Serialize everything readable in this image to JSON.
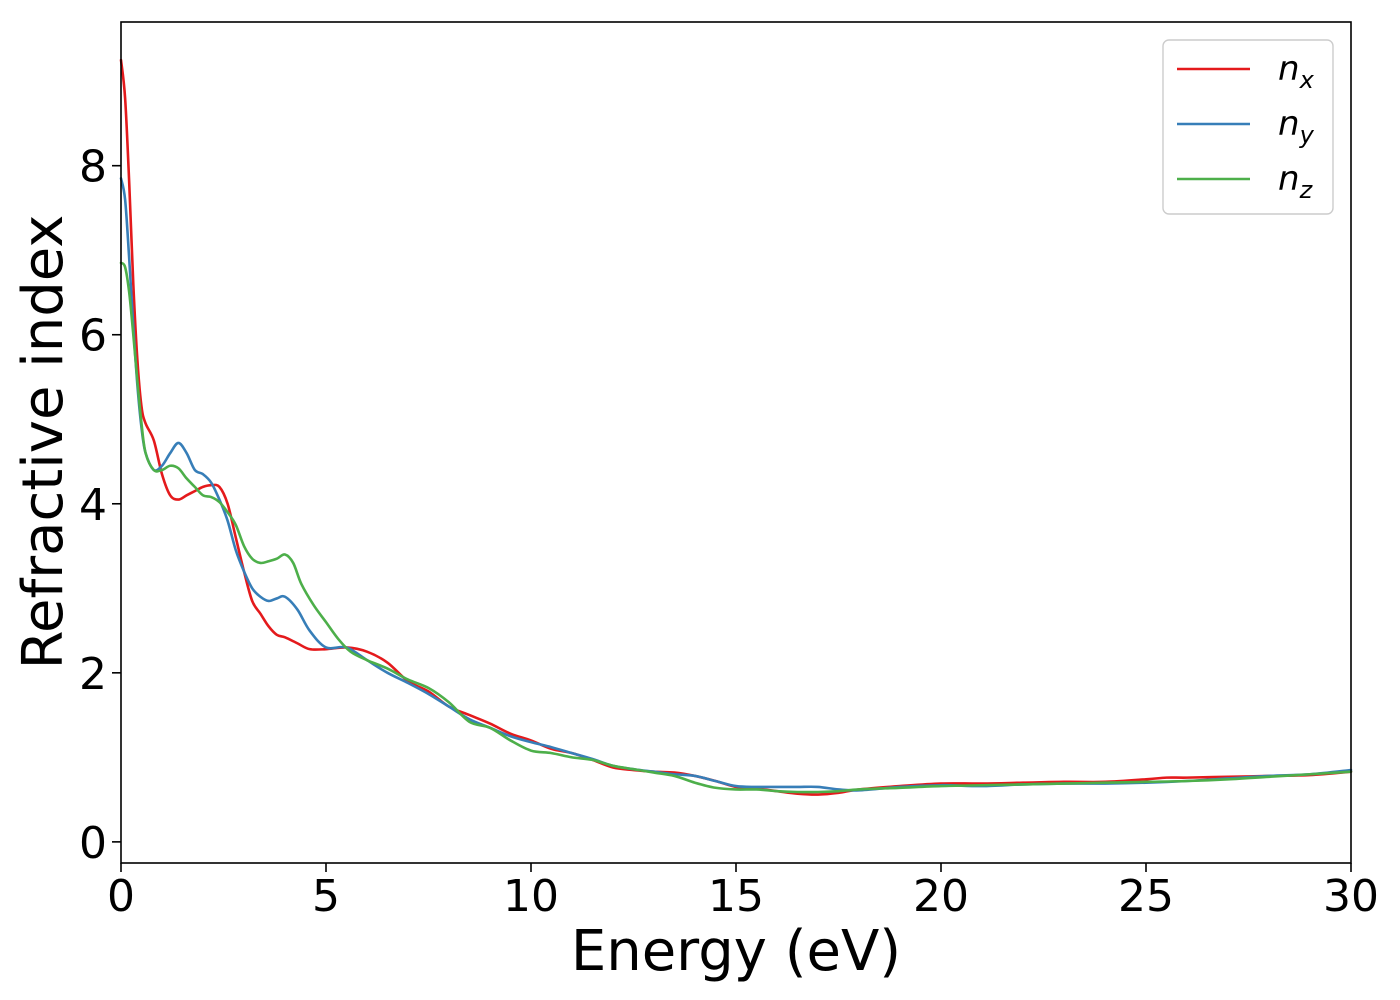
{
  "chart_data": {
    "type": "line",
    "xlabel": "Energy (eV)",
    "ylabel": "Refractive index",
    "xlim": [
      0,
      30
    ],
    "ylim": [
      -0.25,
      9.7
    ],
    "xticks": [
      0,
      5,
      10,
      15,
      20,
      25,
      30
    ],
    "yticks": [
      0,
      2,
      4,
      6,
      8
    ],
    "grid": false,
    "legend": "top-right",
    "series": [
      {
        "name": "n",
        "subscript": "x",
        "color": "#e41a1c",
        "x": [
          0,
          0.1,
          0.2,
          0.3,
          0.4,
          0.5,
          0.6,
          0.8,
          1.0,
          1.2,
          1.4,
          1.6,
          1.8,
          2.0,
          2.2,
          2.4,
          2.6,
          2.8,
          3.0,
          3.2,
          3.4,
          3.6,
          3.8,
          4.0,
          4.3,
          4.6,
          5.0,
          5.5,
          6.0,
          6.5,
          7.0,
          7.5,
          8.0,
          8.5,
          9.0,
          9.5,
          10.0,
          10.5,
          11.0,
          11.5,
          12.0,
          12.5,
          13.0,
          13.5,
          14.0,
          14.5,
          15.0,
          15.5,
          16.0,
          16.5,
          17.0,
          17.5,
          18.0,
          19.0,
          20.0,
          21.0,
          22.0,
          23.0,
          24.0,
          25.0,
          25.5,
          26.0,
          27.0,
          28.0,
          29.0,
          30.0
        ],
        "y": [
          9.25,
          8.8,
          7.8,
          6.6,
          5.7,
          5.15,
          4.95,
          4.75,
          4.35,
          4.1,
          4.05,
          4.1,
          4.15,
          4.2,
          4.22,
          4.2,
          4.0,
          3.6,
          3.2,
          2.85,
          2.7,
          2.55,
          2.45,
          2.42,
          2.35,
          2.28,
          2.28,
          2.3,
          2.25,
          2.12,
          1.9,
          1.78,
          1.6,
          1.5,
          1.4,
          1.28,
          1.2,
          1.1,
          1.05,
          0.97,
          0.88,
          0.85,
          0.83,
          0.82,
          0.78,
          0.72,
          0.65,
          0.63,
          0.6,
          0.57,
          0.56,
          0.58,
          0.62,
          0.66,
          0.69,
          0.69,
          0.7,
          0.71,
          0.71,
          0.74,
          0.76,
          0.76,
          0.77,
          0.78,
          0.79,
          0.83
        ]
      },
      {
        "name": "n",
        "subscript": "y",
        "color": "#377eb8",
        "x": [
          0,
          0.1,
          0.2,
          0.3,
          0.4,
          0.5,
          0.6,
          0.8,
          1.0,
          1.2,
          1.4,
          1.6,
          1.8,
          2.0,
          2.2,
          2.4,
          2.6,
          2.8,
          3.0,
          3.2,
          3.4,
          3.6,
          3.8,
          4.0,
          4.3,
          4.6,
          5.0,
          5.5,
          6.0,
          6.5,
          7.0,
          7.5,
          8.0,
          8.5,
          9.0,
          9.5,
          10.0,
          10.5,
          11.0,
          11.5,
          12.0,
          12.5,
          13.0,
          13.5,
          14.0,
          14.5,
          15.0,
          15.5,
          16.0,
          16.5,
          17.0,
          17.5,
          18.0,
          19.0,
          20.0,
          21.0,
          22.0,
          23.0,
          24.0,
          25.0,
          26.0,
          27.0,
          28.0,
          29.0,
          30.0
        ],
        "y": [
          7.85,
          7.6,
          6.9,
          6.1,
          5.4,
          4.9,
          4.6,
          4.4,
          4.45,
          4.6,
          4.72,
          4.6,
          4.4,
          4.35,
          4.25,
          4.05,
          3.8,
          3.45,
          3.2,
          3.0,
          2.9,
          2.85,
          2.88,
          2.9,
          2.75,
          2.5,
          2.3,
          2.3,
          2.15,
          2.0,
          1.88,
          1.75,
          1.6,
          1.45,
          1.35,
          1.25,
          1.18,
          1.12,
          1.05,
          0.98,
          0.9,
          0.86,
          0.83,
          0.8,
          0.78,
          0.72,
          0.66,
          0.65,
          0.65,
          0.65,
          0.65,
          0.62,
          0.61,
          0.65,
          0.67,
          0.66,
          0.68,
          0.69,
          0.69,
          0.7,
          0.72,
          0.75,
          0.78,
          0.8,
          0.85
        ]
      },
      {
        "name": "n",
        "subscript": "z",
        "color": "#4daf4a",
        "x": [
          0,
          0.1,
          0.2,
          0.3,
          0.4,
          0.5,
          0.6,
          0.8,
          1.0,
          1.2,
          1.4,
          1.6,
          1.8,
          2.0,
          2.2,
          2.4,
          2.6,
          2.8,
          3.0,
          3.2,
          3.4,
          3.6,
          3.8,
          4.0,
          4.2,
          4.4,
          4.7,
          5.0,
          5.3,
          5.6,
          6.0,
          6.5,
          7.0,
          7.5,
          8.0,
          8.5,
          9.0,
          9.5,
          10.0,
          10.5,
          11.0,
          11.5,
          12.0,
          12.5,
          13.0,
          13.5,
          14.0,
          14.5,
          15.0,
          15.5,
          16.0,
          16.5,
          17.0,
          17.5,
          18.0,
          19.0,
          20.0,
          21.0,
          22.0,
          23.0,
          24.0,
          25.0,
          26.0,
          27.0,
          28.0,
          29.0,
          30.0
        ],
        "y": [
          6.85,
          6.8,
          6.5,
          6.0,
          5.45,
          4.95,
          4.6,
          4.4,
          4.4,
          4.45,
          4.42,
          4.3,
          4.2,
          4.1,
          4.08,
          4.02,
          3.9,
          3.75,
          3.5,
          3.35,
          3.3,
          3.32,
          3.35,
          3.4,
          3.3,
          3.05,
          2.8,
          2.6,
          2.4,
          2.25,
          2.15,
          2.05,
          1.92,
          1.82,
          1.65,
          1.42,
          1.35,
          1.2,
          1.08,
          1.05,
          1.0,
          0.97,
          0.9,
          0.86,
          0.82,
          0.78,
          0.7,
          0.64,
          0.62,
          0.62,
          0.6,
          0.59,
          0.59,
          0.6,
          0.62,
          0.64,
          0.66,
          0.67,
          0.68,
          0.69,
          0.7,
          0.71,
          0.72,
          0.74,
          0.77,
          0.8,
          0.83
        ]
      }
    ]
  }
}
